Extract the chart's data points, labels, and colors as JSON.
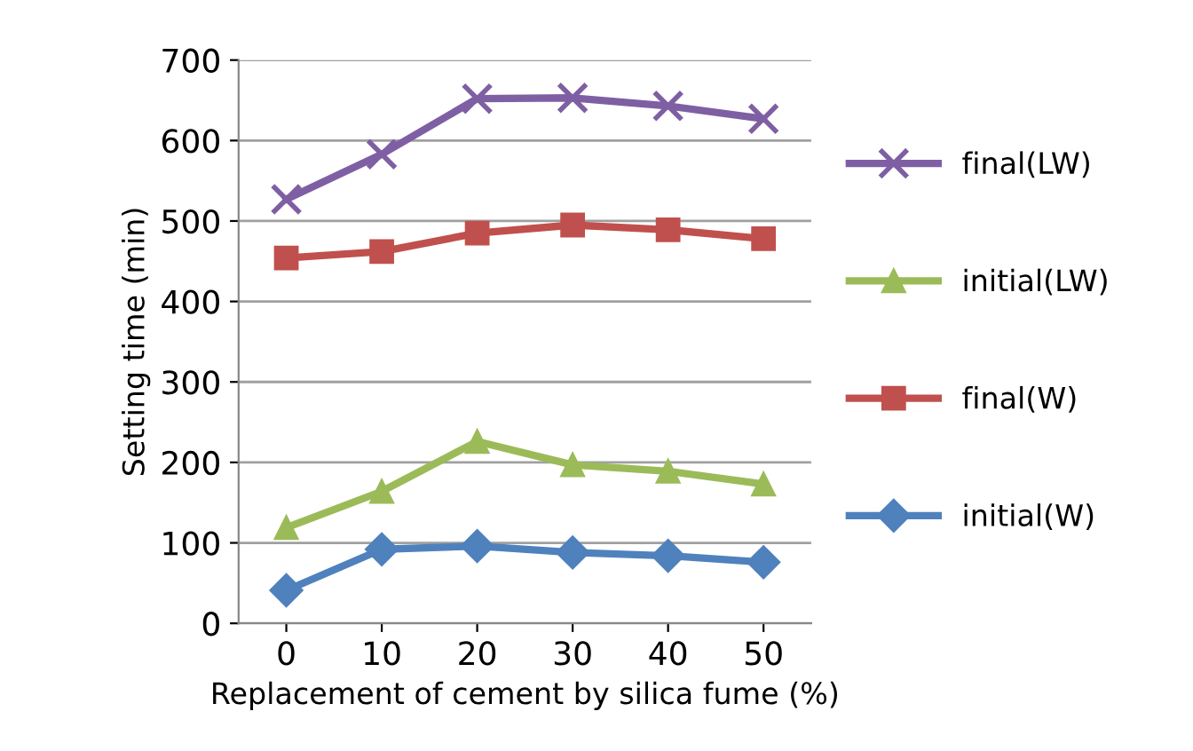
{
  "chart_data": {
    "type": "line",
    "xlabel": "Replacement of cement by silica fume (%)",
    "ylabel": "Setting time (min)",
    "categories": [
      "0",
      "10",
      "20",
      "30",
      "40",
      "50"
    ],
    "series": [
      {
        "name": "final(LW)",
        "color": "#7f5fa3",
        "marker": "cross",
        "values": [
          527,
          583,
          652,
          653,
          643,
          627
        ]
      },
      {
        "name": "initial(LW)",
        "color": "#9bbb59",
        "marker": "triangle",
        "values": [
          119,
          164,
          226,
          197,
          189,
          173
        ]
      },
      {
        "name": "final(W)",
        "color": "#c0504d",
        "marker": "square",
        "values": [
          454,
          462,
          485,
          495,
          489,
          478
        ]
      },
      {
        "name": "initial(W)",
        "color": "#4f81bd",
        "marker": "diamond",
        "values": [
          41,
          92,
          96,
          88,
          84,
          76
        ]
      }
    ],
    "ylim": [
      0,
      700
    ],
    "yticks": [
      0,
      100,
      200,
      300,
      400,
      500,
      600,
      700
    ],
    "grid": "y",
    "legend": "right",
    "line_style": "solid"
  }
}
